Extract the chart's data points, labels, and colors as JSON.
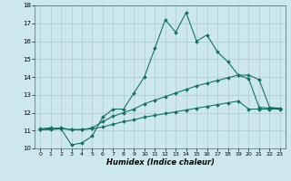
{
  "xlabel": "Humidex (Indice chaleur)",
  "xlim": [
    -0.5,
    23.5
  ],
  "ylim": [
    10,
    18
  ],
  "xticks": [
    0,
    1,
    2,
    3,
    4,
    5,
    6,
    7,
    8,
    9,
    10,
    11,
    12,
    13,
    14,
    15,
    16,
    17,
    18,
    19,
    20,
    21,
    22,
    23
  ],
  "yticks": [
    10,
    11,
    12,
    13,
    14,
    15,
    16,
    17,
    18
  ],
  "bg_color": "#cce8ec",
  "grid_color": "#aacccc",
  "line_color": "#1a7060",
  "line1_x": [
    0,
    1,
    2,
    3,
    4,
    5,
    6,
    7,
    8,
    9,
    10,
    11,
    12,
    13,
    14,
    15,
    16,
    17,
    18,
    19,
    20,
    21,
    22,
    23
  ],
  "line1_y": [
    11.1,
    11.15,
    11.1,
    10.2,
    10.3,
    10.7,
    11.75,
    12.2,
    12.2,
    13.1,
    14.0,
    15.6,
    17.2,
    16.5,
    17.6,
    16.0,
    16.35,
    15.4,
    14.85,
    14.1,
    13.9,
    12.3,
    12.25,
    12.25
  ],
  "line2_x": [
    0,
    1,
    2,
    3,
    4,
    5,
    6,
    7,
    8,
    9,
    10,
    11,
    12,
    13,
    14,
    15,
    16,
    17,
    18,
    19,
    20,
    21,
    22,
    23
  ],
  "line2_y": [
    11.05,
    11.1,
    11.15,
    11.05,
    11.05,
    11.15,
    11.5,
    11.8,
    12.0,
    12.2,
    12.5,
    12.7,
    12.9,
    13.1,
    13.3,
    13.5,
    13.65,
    13.8,
    13.95,
    14.1,
    14.1,
    13.85,
    12.3,
    12.25
  ],
  "line3_x": [
    0,
    1,
    2,
    3,
    4,
    5,
    6,
    7,
    8,
    9,
    10,
    11,
    12,
    13,
    14,
    15,
    16,
    17,
    18,
    19,
    20,
    21,
    22,
    23
  ],
  "line3_y": [
    11.05,
    11.05,
    11.1,
    11.05,
    11.05,
    11.1,
    11.2,
    11.35,
    11.5,
    11.6,
    11.75,
    11.85,
    11.95,
    12.05,
    12.15,
    12.25,
    12.35,
    12.45,
    12.55,
    12.65,
    12.2,
    12.2,
    12.2,
    12.2
  ]
}
